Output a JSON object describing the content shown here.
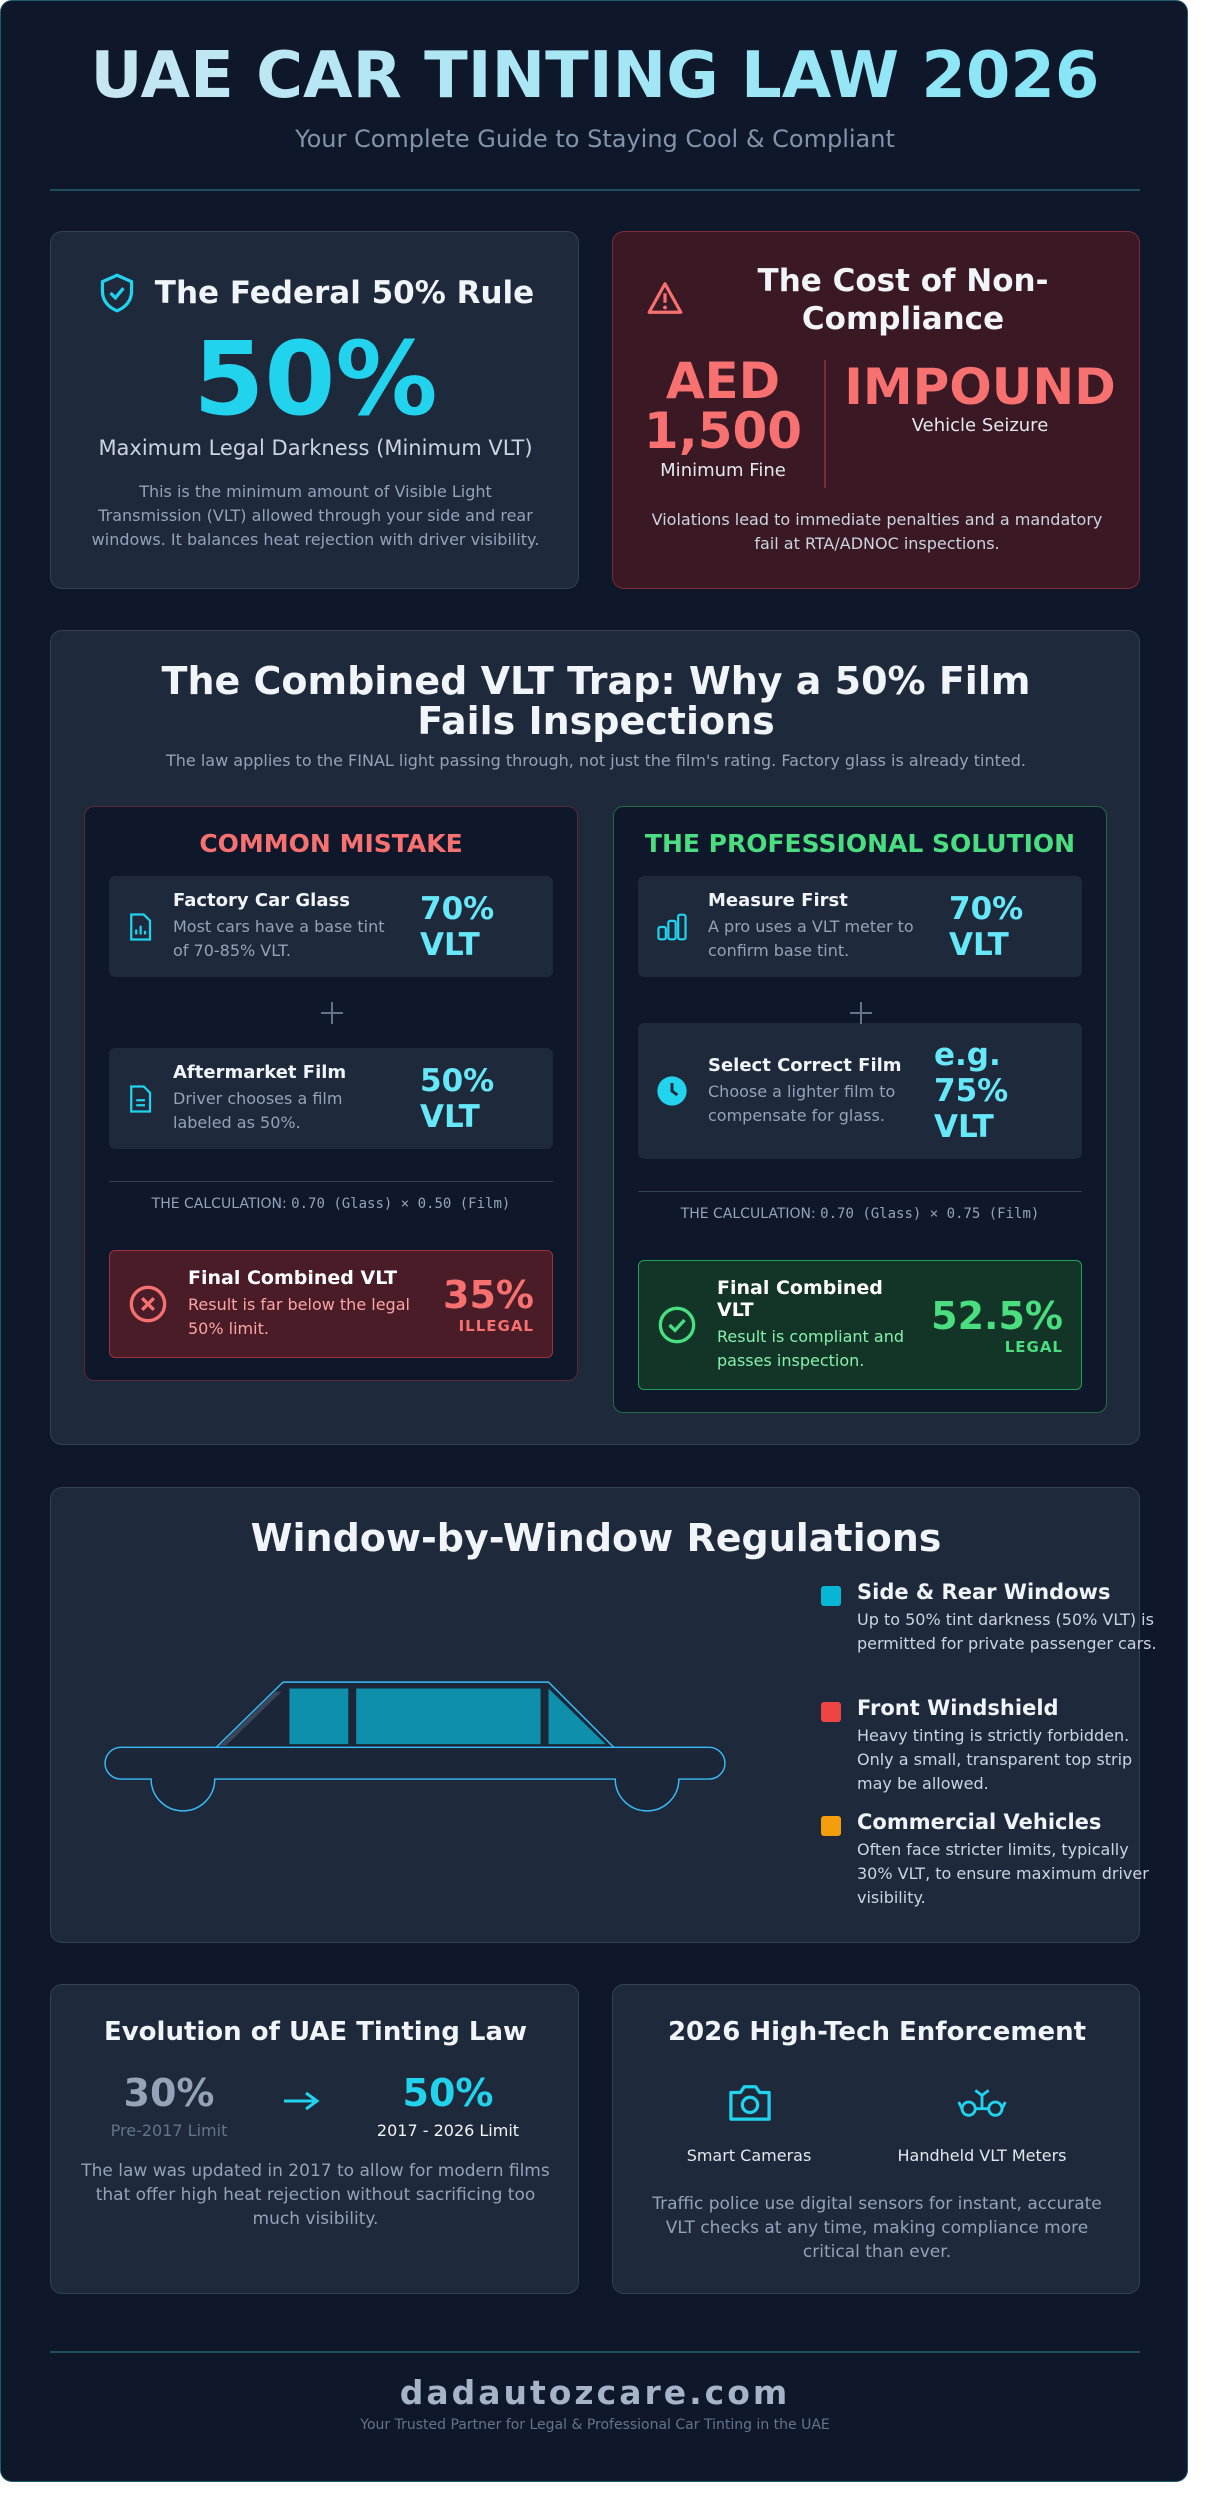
{
  "header": {
    "title": "UAE CAR TINTING LAW 2026",
    "subtitle": "Your Complete Guide to Staying Cool & Compliant"
  },
  "federal_rule": {
    "title": "The Federal 50% Rule",
    "value": "50%",
    "caption": "Maximum Legal Darkness (Minimum VLT)",
    "description": "This is the minimum amount of Visible Light Transmission (VLT) allowed through your side and rear windows. It balances heat rejection with driver visibility."
  },
  "non_compliance": {
    "title": "The Cost of Non-Compliance",
    "fine": {
      "value": "AED 1,500",
      "label": "Minimum Fine"
    },
    "impound": {
      "value": "IMPOUND",
      "label": "Vehicle Seizure"
    },
    "description": "Violations lead to immediate penalties and a mandatory fail at RTA/ADNOC inspections."
  },
  "vlt_trap": {
    "title": "The Combined VLT Trap: Why a 50% Film Fails Inspections",
    "subtitle": "The law applies to the FINAL light passing through, not just the film's rating. Factory glass is already tinted.",
    "mistake": {
      "heading": "COMMON MISTAKE",
      "steps": [
        {
          "title": "Factory Car Glass",
          "text": "Most cars have a base tint of 70-85% VLT.",
          "value": "70% VLT"
        },
        {
          "title": "Aftermarket Film",
          "text": "Driver chooses a film labeled as 50%.",
          "value": "50% VLT"
        }
      ],
      "calculation_label": "THE CALCULATION:",
      "calculation": "0.70 (Glass) × 0.50 (Film)",
      "result": {
        "title": "Final Combined VLT",
        "text": "Result is far below the legal 50% limit.",
        "value": "35%",
        "status": "ILLEGAL"
      }
    },
    "solution": {
      "heading": "THE PROFESSIONAL SOLUTION",
      "steps": [
        {
          "title": "Measure First",
          "text": "A pro uses a VLT meter to confirm base tint.",
          "value": "70% VLT"
        },
        {
          "title": "Select Correct Film",
          "text": "Choose a lighter film to compensate for glass.",
          "value": "e.g. 75% VLT"
        }
      ],
      "calculation_label": "THE CALCULATION:",
      "calculation": "0.70 (Glass) × 0.75 (Film)",
      "result": {
        "title": "Final Combined VLT",
        "text": "Result is compliant and passes inspection.",
        "value": "52.5%",
        "status": "LEGAL"
      }
    }
  },
  "windows": {
    "title": "Window-by-Window Regulations",
    "items": [
      {
        "title": "Side & Rear Windows",
        "text": "Up to 50% tint darkness (50% VLT) is permitted for private passenger cars."
      },
      {
        "title": "Front Windshield",
        "text": "Heavy tinting is strictly forbidden. Only a small, transparent top strip may be allowed."
      },
      {
        "title": "Commercial Vehicles",
        "text": "Often face stricter limits, typically 30% VLT, to ensure maximum driver visibility."
      }
    ]
  },
  "evolution": {
    "title": "Evolution of UAE Tinting Law",
    "before": {
      "value": "30%",
      "label": "Pre-2017 Limit"
    },
    "after": {
      "value": "50%",
      "label": "2017 - 2026 Limit"
    },
    "description": "The law was updated in 2017 to allow for modern films that offer high heat rejection without sacrificing too much visibility."
  },
  "enforcement": {
    "title": "2026 High-Tech Enforcement",
    "tools": [
      "Smart Cameras",
      "Handheld VLT Meters"
    ],
    "description": "Traffic police use digital sensors for instant, accurate VLT checks at any time, making compliance more critical than ever."
  },
  "footer": {
    "domain": "dadautozcare.com",
    "tagline": "Your Trusted Partner for Legal & Professional Car Tinting in the UAE"
  }
}
